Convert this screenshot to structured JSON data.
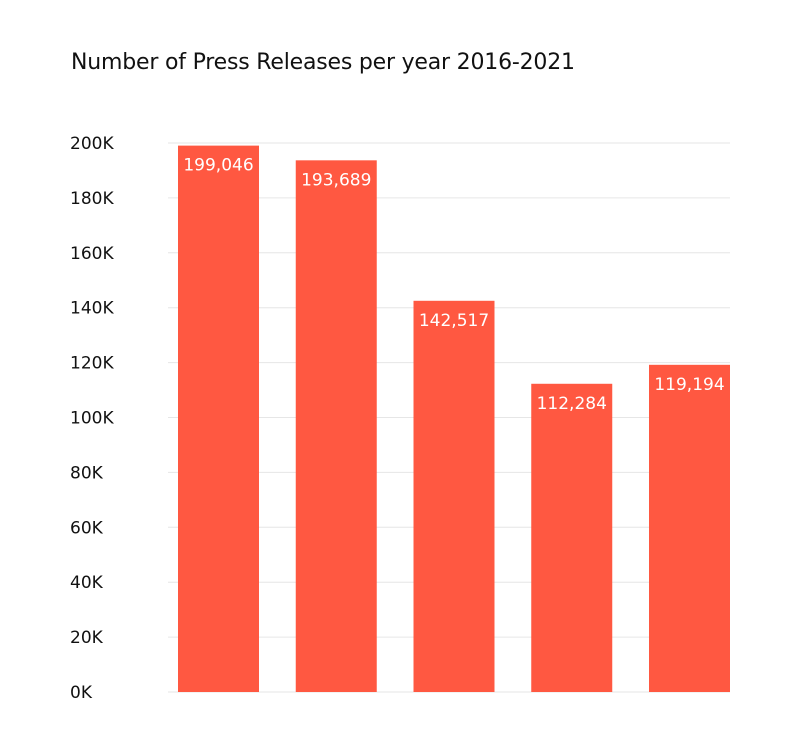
{
  "chart_data": {
    "type": "bar",
    "title": "Number of Press Releases per year 2016-2021",
    "xlabel": "",
    "ylabel": "",
    "categories": [
      "",
      "",
      "",
      "",
      ""
    ],
    "values": [
      199046,
      193689,
      142517,
      112284,
      119194
    ],
    "data_labels": [
      "199,046",
      "193,689",
      "142,517",
      "112,284",
      "119,194"
    ],
    "ylim": [
      0,
      200000
    ],
    "y_ticks": [
      0,
      20000,
      40000,
      60000,
      80000,
      100000,
      120000,
      140000,
      160000,
      180000,
      200000
    ],
    "y_tick_labels": [
      "0K",
      "20K",
      "40K",
      "60K",
      "80K",
      "100K",
      "120K",
      "140K",
      "160K",
      "180K",
      "200K"
    ],
    "grid": true,
    "legend": "none",
    "bar_color": "#ff5841",
    "grid_color": "#e6e6e6"
  }
}
